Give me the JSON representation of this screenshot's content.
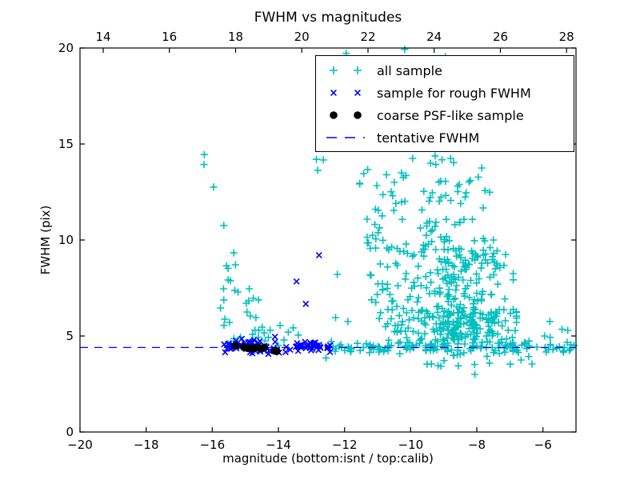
{
  "chart_data": {
    "type": "scatter",
    "title": "FWHM vs magnitudes",
    "xlabel": "magnitude (bottom:isnt / top:calib)",
    "ylabel": "FWHM (pix)",
    "xlim": [
      -20,
      -5
    ],
    "x2lim": [
      13.3,
      28.285
    ],
    "ylim": [
      0,
      20
    ],
    "x_ticks_bottom": {
      "values": [
        -20,
        -18,
        -16,
        -14,
        -12,
        -10,
        -8,
        -6
      ],
      "labels": [
        "−20",
        "−18",
        "−16",
        "−14",
        "−12",
        "−10",
        "−8",
        "−6"
      ]
    },
    "x_ticks_top": {
      "values": [
        14,
        16,
        18,
        20,
        22,
        24,
        26,
        28
      ],
      "labels": [
        "14",
        "16",
        "18",
        "20",
        "22",
        "24",
        "26",
        "28"
      ]
    },
    "y_ticks": {
      "values": [
        0,
        5,
        10,
        15,
        20
      ],
      "labels": [
        "0",
        "5",
        "10",
        "15",
        "20"
      ]
    },
    "clusters_note": "cluster specs reproduce the density of heavily overplotted regions; points lists are directly measured markers",
    "series": [
      {
        "name": "all sample",
        "marker": "plus",
        "color": "#00bfbf",
        "points": [
          [
            -16.24,
            14.45
          ],
          [
            -16.25,
            13.93
          ],
          [
            -15.96,
            12.76
          ],
          [
            -15.65,
            10.76
          ],
          [
            -15.35,
            9.33
          ],
          [
            -15.3,
            8.71
          ],
          [
            -15.57,
            8.66
          ],
          [
            -15.52,
            8.52
          ],
          [
            -15.45,
            7.88
          ],
          [
            -15.52,
            7.92
          ],
          [
            -15.66,
            7.46
          ],
          [
            -15.32,
            7.38
          ],
          [
            -15.22,
            7.29
          ],
          [
            -14.88,
            7.46
          ],
          [
            -15.75,
            6.46
          ],
          [
            -15.65,
            6.88
          ],
          [
            -15.62,
            5.88
          ],
          [
            -15.48,
            5.71
          ],
          [
            -14.97,
            6.71
          ],
          [
            -14.9,
            6.83
          ],
          [
            -14.76,
            6.96
          ],
          [
            -14.6,
            6.88
          ],
          [
            -14.95,
            6.25
          ],
          [
            -14.85,
            6.04
          ],
          [
            -14.68,
            5.96
          ],
          [
            -14.49,
            5.46
          ],
          [
            -14.25,
            5.3
          ],
          [
            -13.95,
            5.55
          ],
          [
            -13.7,
            5.2
          ],
          [
            -13.4,
            5.05
          ],
          [
            -12.85,
            14.2
          ],
          [
            -12.64,
            14.17
          ],
          [
            -12.81,
            13.63
          ],
          [
            -12.22,
            8.21
          ],
          [
            -12.27,
            5.96
          ],
          [
            -11.9,
            5.75
          ],
          [
            -12.56,
            3.86
          ],
          [
            -11.3,
            13.67
          ],
          [
            -11.42,
            13.46
          ],
          [
            -11.54,
            12.92
          ],
          [
            -11.06,
            9.58
          ],
          [
            -10.73,
            13.4
          ],
          [
            -10.28,
            13.5
          ],
          [
            -10.22,
            13.26
          ],
          [
            -10.14,
            13.36
          ],
          [
            -9.94,
            14.25
          ],
          [
            -9.4,
            14.0
          ],
          [
            -9.26,
            14.38
          ],
          [
            -9.24,
            13.93
          ],
          [
            -9.05,
            14.18
          ],
          [
            -8.79,
            14.25
          ],
          [
            -8.7,
            14.03
          ],
          [
            -7.85,
            13.75
          ],
          [
            -7.81,
            11.67
          ],
          [
            -7.5,
            10.0
          ],
          [
            -11.95,
            19.72
          ],
          [
            -10.18,
            19.93
          ],
          [
            -8.95,
            19.55
          ],
          [
            -8.06,
            3.0
          ],
          [
            -6.66,
            3.75
          ],
          [
            -6.43,
            3.93
          ],
          [
            -6.33,
            3.54
          ],
          [
            -5.79,
            5.76
          ],
          [
            -5.42,
            5.35
          ],
          [
            -5.25,
            5.29
          ],
          [
            -5.95,
            5.0
          ],
          [
            -5.78,
            4.93
          ],
          [
            -5.58,
            4.37
          ],
          [
            -5.9,
            4.17
          ],
          [
            -6.18,
            4.42
          ],
          [
            -5.06,
            4.51
          ],
          [
            -6.55,
            4.65
          ],
          [
            -6.85,
            4.48
          ]
        ],
        "clusters": [
          {
            "seed": 11,
            "n": 20,
            "x": {
              "min": -15.7,
              "max": -13.5
            },
            "y": {
              "dist": "gauss",
              "mu": 5.0,
              "sigma": 0.45,
              "min": 4.15,
              "max": 6.6
            }
          },
          {
            "seed": 12,
            "n": 25,
            "x": {
              "min": -11.6,
              "max": -9.7
            },
            "y": {
              "min": 9.8,
              "max": 13.2
            }
          },
          {
            "seed": 13,
            "n": 50,
            "x": {
              "min": -9.7,
              "max": -7.6
            },
            "y": {
              "min": 9.5,
              "max": 13.4
            }
          },
          {
            "seed": 14,
            "n": 45,
            "x": {
              "min": -11.3,
              "max": -9.8
            },
            "y": {
              "min": 5.2,
              "max": 9.8
            }
          },
          {
            "seed": 15,
            "n": 150,
            "x": {
              "dist": "gauss",
              "mu": -8.5,
              "sigma": 0.85,
              "min": -10.6,
              "max": -6.9
            },
            "y": {
              "min": 6.3,
              "max": 9.6
            }
          },
          {
            "seed": 16,
            "n": 170,
            "x": {
              "dist": "gauss",
              "mu": -8.4,
              "sigma": 0.85,
              "min": -10.8,
              "max": -6.8
            },
            "y": {
              "min": 4.8,
              "max": 6.3
            }
          },
          {
            "seed": 17,
            "n": 40,
            "x": {
              "min": -12.55,
              "max": -10.2
            },
            "y": {
              "dist": "gauss",
              "mu": 4.45,
              "sigma": 0.16,
              "min": 3.9,
              "max": 5.0
            }
          },
          {
            "seed": 18,
            "n": 80,
            "x": {
              "min": -10.2,
              "max": -6.9
            },
            "y": {
              "dist": "gauss",
              "mu": 4.42,
              "sigma": 0.22,
              "min": 3.7,
              "max": 5.1
            }
          },
          {
            "seed": 19,
            "n": 28,
            "x": {
              "min": -6.9,
              "max": -5.05
            },
            "y": {
              "dist": "gauss",
              "mu": 4.45,
              "sigma": 0.14,
              "min": 4.0,
              "max": 4.9
            }
          },
          {
            "seed": 20,
            "n": 12,
            "x": {
              "min": -9.8,
              "max": -6.9
            },
            "y": {
              "min": 3.3,
              "max": 4.05
            }
          }
        ]
      },
      {
        "name": "sample for rough FWHM",
        "marker": "x",
        "color": "#0000ff",
        "points": [
          [
            -12.77,
            9.21
          ],
          [
            -13.45,
            7.84
          ],
          [
            -13.17,
            6.67
          ]
        ],
        "clusters": [
          {
            "seed": 31,
            "n": 60,
            "x": {
              "min": -15.62,
              "max": -12.38
            },
            "y": {
              "dist": "gauss",
              "mu": 4.47,
              "sigma": 0.17,
              "min": 3.95,
              "max": 5.1
            }
          },
          {
            "seed": 32,
            "n": 25,
            "x": {
              "min": -15.65,
              "max": -14.6
            },
            "y": {
              "dist": "gauss",
              "mu": 4.52,
              "sigma": 0.22,
              "min": 4.0,
              "max": 5.2
            }
          },
          {
            "seed": 33,
            "n": 12,
            "x": {
              "min": -13.4,
              "max": -12.4
            },
            "y": {
              "dist": "gauss",
              "mu": 4.45,
              "sigma": 0.12,
              "min": 4.1,
              "max": 4.85
            }
          }
        ]
      },
      {
        "name": "tentative FWHM",
        "type": "hline",
        "y": 4.4,
        "color": "#0000ff",
        "style": "dashed"
      },
      {
        "name": "coarse PSF-like sample",
        "marker": "dot",
        "color": "#000000",
        "points": [
          [
            -15.3,
            4.49
          ],
          [
            -15.05,
            4.42
          ],
          [
            -14.92,
            4.36
          ],
          [
            -14.83,
            4.36
          ],
          [
            -14.72,
            4.37
          ],
          [
            -14.59,
            4.39
          ],
          [
            -14.5,
            4.35
          ],
          [
            -14.43,
            4.39
          ],
          [
            -14.11,
            4.22
          ],
          [
            -14.05,
            4.21
          ]
        ]
      }
    ],
    "legend": {
      "position": "upper right",
      "entries": [
        {
          "label": "all sample",
          "marker": "plus",
          "color": "#00bfbf"
        },
        {
          "label": "sample for rough FWHM",
          "marker": "x",
          "color": "#0000ff"
        },
        {
          "label": "coarse PSF-like sample",
          "marker": "dot",
          "color": "#000000"
        },
        {
          "label": "tentative FWHM",
          "marker": "dash",
          "color": "#0000ff"
        }
      ]
    }
  }
}
